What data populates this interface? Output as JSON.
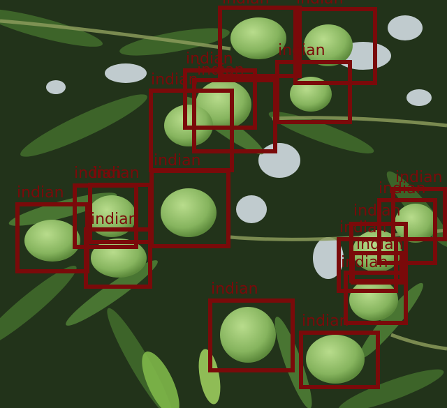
{
  "image": {
    "subject": "mango-tree-canopy",
    "colors": {
      "box": "#7a0a0a",
      "leaf_dark": "#1f3317",
      "leaf_mid": "#3f6a2b",
      "mango": "#8fc06a",
      "sky": "#dfe8f0"
    }
  },
  "detections": [
    {
      "label": "indian"
    },
    {
      "label": "indian"
    },
    {
      "label": "indian"
    },
    {
      "label": "indian"
    },
    {
      "label": "indian"
    },
    {
      "label": "indian"
    },
    {
      "label": "indian"
    },
    {
      "label": "indian"
    },
    {
      "label": "indian"
    },
    {
      "label": "indian"
    },
    {
      "label": "indian"
    },
    {
      "label": "indian"
    },
    {
      "label": "indian"
    },
    {
      "label": "indian"
    },
    {
      "label": "indian"
    },
    {
      "label": "indian"
    },
    {
      "label": "indian"
    },
    {
      "label": "indian"
    },
    {
      "label": "indian"
    }
  ]
}
